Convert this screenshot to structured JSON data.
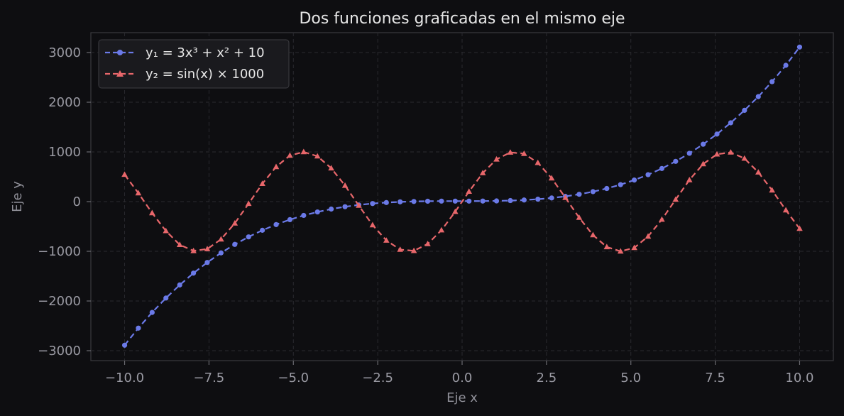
{
  "chart_data": {
    "type": "line",
    "title": "Dos funciones graficadas en el mismo eje",
    "xlabel": "Eje x",
    "ylabel": "Eje y",
    "xlim": [
      -11,
      11
    ],
    "ylim": [
      -3200,
      3400
    ],
    "xticks": [
      -10,
      -7.5,
      -5,
      -2.5,
      0,
      2.5,
      5,
      7.5,
      10
    ],
    "xtick_labels": [
      "−10.0",
      "−7.5",
      "−5.0",
      "−2.5",
      "0.0",
      "2.5",
      "5.0",
      "7.5",
      "10.0"
    ],
    "yticks": [
      -3000,
      -2000,
      -1000,
      0,
      1000,
      2000,
      3000
    ],
    "ytick_labels": [
      "−3000",
      "−2000",
      "−1000",
      "0",
      "1000",
      "2000",
      "3000"
    ],
    "grid": true,
    "legend_position": "top-left",
    "x": [
      -10,
      -9.592,
      -9.184,
      -8.776,
      -8.367,
      -7.959,
      -7.551,
      -7.143,
      -6.735,
      -6.327,
      -5.918,
      -5.51,
      -5.102,
      -4.694,
      -4.286,
      -3.878,
      -3.469,
      -3.061,
      -2.653,
      -2.245,
      -1.837,
      -1.429,
      -1.02,
      -0.612,
      -0.204,
      0.204,
      0.612,
      1.02,
      1.429,
      1.837,
      2.245,
      2.653,
      3.061,
      3.469,
      3.878,
      4.286,
      4.694,
      5.102,
      5.51,
      5.918,
      6.327,
      6.735,
      7.143,
      7.551,
      7.959,
      8.367,
      8.776,
      9.184,
      9.592,
      10
    ],
    "series": [
      {
        "name": "y₁ = 3x³ + x² + 10",
        "color": "#6b7ae8",
        "marker": "circle",
        "values": [
          -2890,
          -2546,
          -2230,
          -1941,
          -1677,
          -1439,
          -1224,
          -1032,
          -861,
          -710,
          -577,
          -462,
          -363,
          -278,
          -208,
          -150,
          -103,
          -67,
          -39,
          -19,
          -5,
          3,
          8,
          10,
          10,
          10,
          11,
          14,
          21,
          32,
          49,
          73,
          105,
          147,
          200,
          264,
          341,
          434,
          542,
          666,
          810,
          972,
          1155,
          1359,
          1586,
          1837,
          2113,
          2414,
          2743,
          3110
        ]
      },
      {
        "name": "y₂ = sin(x) × 1000",
        "color": "#e8676b",
        "marker": "triangle",
        "values": [
          544,
          171,
          -228,
          -590,
          -869,
          -991,
          -953,
          -757,
          -436,
          -42,
          360,
          700,
          928,
          1000,
          913,
          673,
          323,
          -80,
          -471,
          -782,
          -965,
          -990,
          -852,
          -575,
          -203,
          203,
          575,
          852,
          990,
          965,
          782,
          471,
          80,
          -323,
          -673,
          -913,
          -1000,
          -928,
          -700,
          -360,
          42,
          436,
          757,
          953,
          991,
          869,
          590,
          228,
          -171,
          -544
        ]
      }
    ]
  }
}
